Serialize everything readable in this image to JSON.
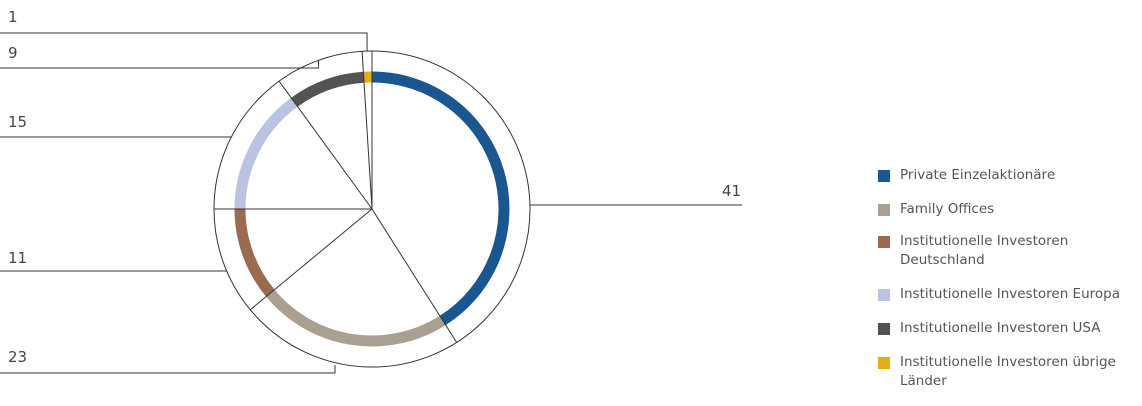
{
  "chart_data": {
    "type": "pie",
    "title": "",
    "categories": [
      "Private Einzelaktionäre",
      "Family Offices",
      "Institutionelle Investoren Deutschland",
      "Institutionelle Investoren Europa",
      "Institutionelle Investoren USA",
      "Institutionelle Investoren übrige Länder"
    ],
    "values": [
      41,
      23,
      11,
      15,
      9,
      1
    ],
    "value_labels": [
      "41",
      "23",
      "11",
      "15",
      "9",
      "1"
    ],
    "colors": [
      "#1a5690",
      "#aaa091",
      "#9a6c4f",
      "#bcc2e2",
      "#535353",
      "#e4ad14"
    ],
    "legend_position": "right",
    "legend": [
      {
        "label": "Private Einzelaktionäre",
        "color": "#1a5690"
      },
      {
        "label": "Family Offices",
        "color": "#aaa091"
      },
      {
        "label": "Institutionelle Investoren Deutschland",
        "color": "#9a6c4f"
      },
      {
        "label": "Institutionelle Investoren Europa",
        "color": "#bcc2e2"
      },
      {
        "label": "Institutionelle Investoren USA",
        "color": "#535353"
      },
      {
        "label": "Institutionelle Investoren übrige Länder",
        "color": "#e4ad14"
      }
    ]
  }
}
